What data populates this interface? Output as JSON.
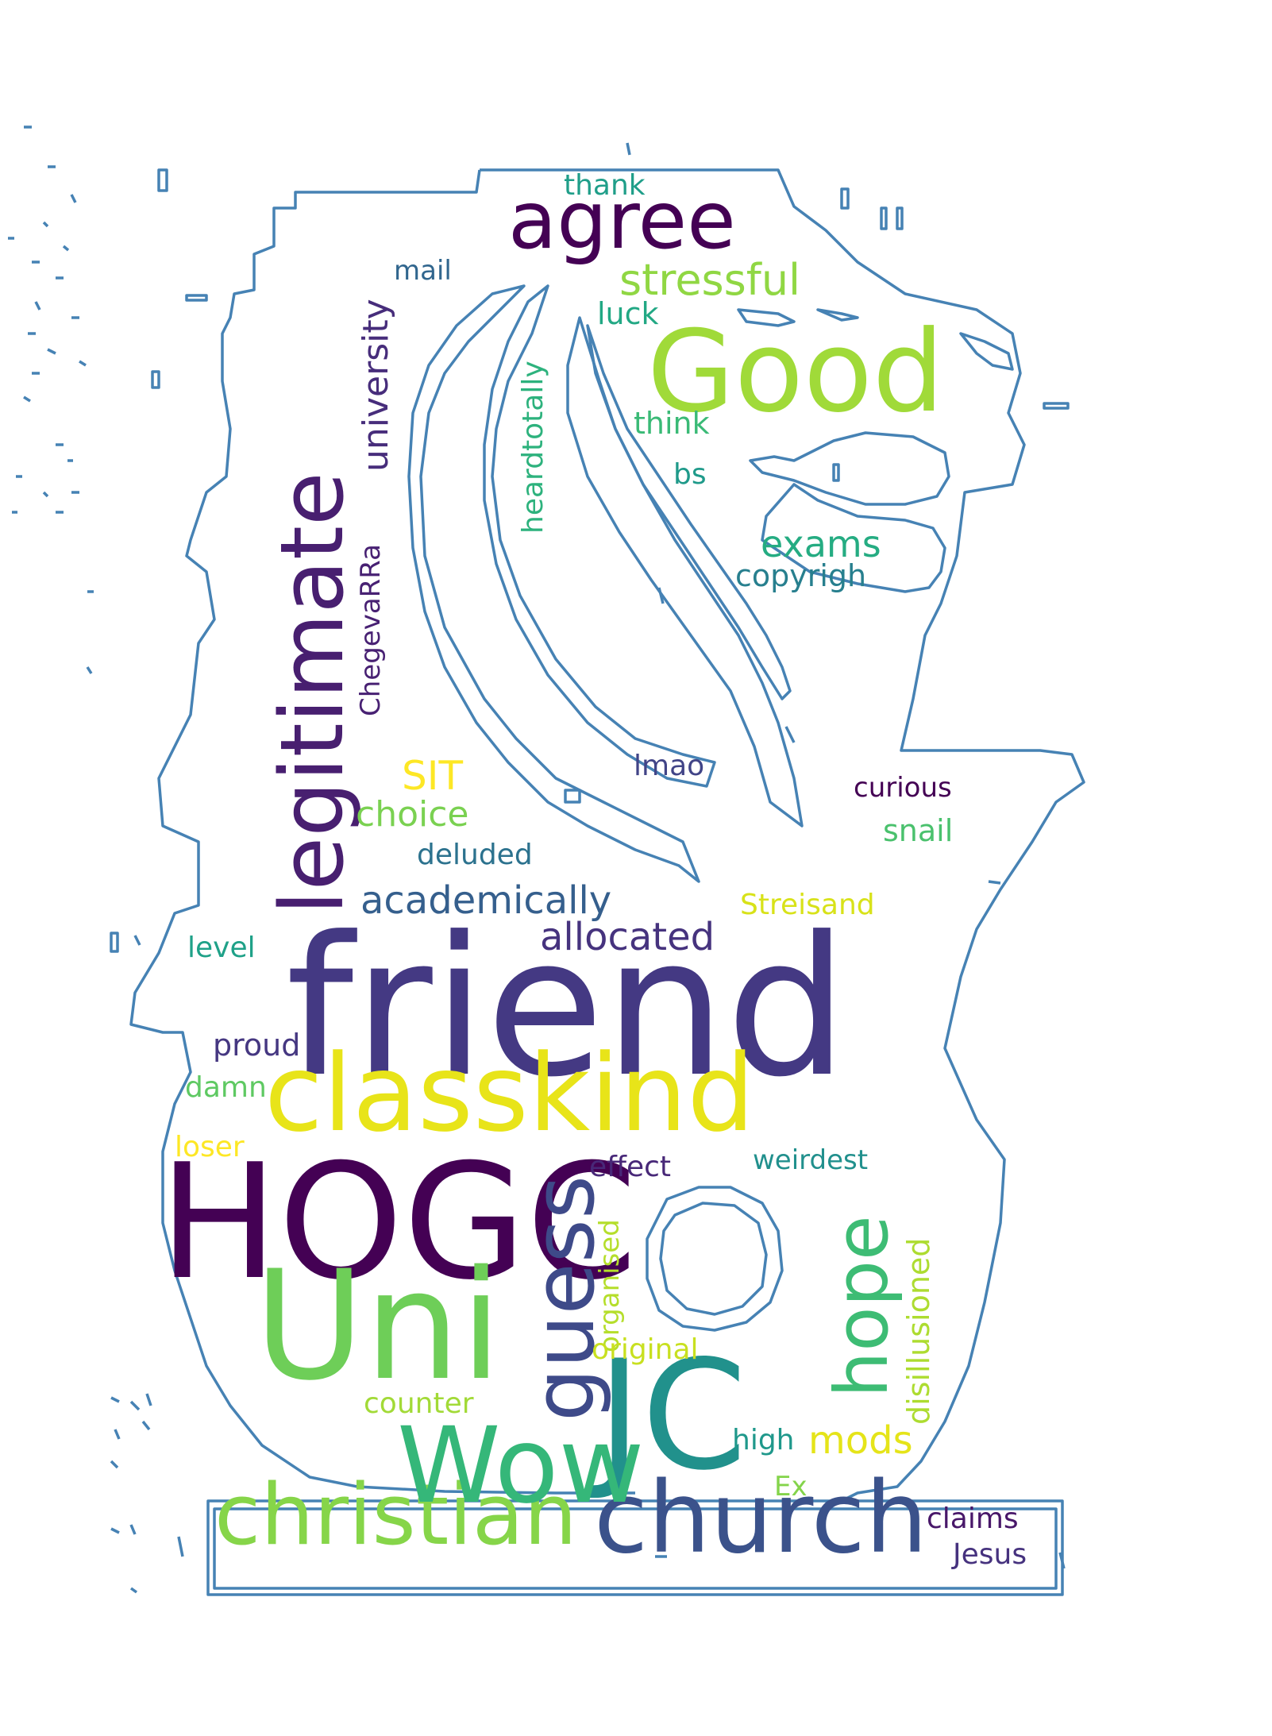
{
  "colors": {
    "background": "#ffffff",
    "outline": "#4682b4"
  },
  "shape_icon": "merlion-outline",
  "words": [
    {
      "text": "friend",
      "color": "#443983",
      "rotated": false
    },
    {
      "text": "HOGC",
      "color": "#440154",
      "rotated": false
    },
    {
      "text": "classkind",
      "color": "#e8e419",
      "rotated": false
    },
    {
      "text": "Uni",
      "color": "#6ece58",
      "rotated": false
    },
    {
      "text": "JC",
      "color": "#21918c",
      "rotated": false
    },
    {
      "text": "church",
      "color": "#3b528b",
      "rotated": false
    },
    {
      "text": "christian",
      "color": "#86d549",
      "rotated": false
    },
    {
      "text": "Wow",
      "color": "#35b779",
      "rotated": false
    },
    {
      "text": "guess",
      "color": "#3e4a89",
      "rotated": true
    },
    {
      "text": "hope",
      "color": "#3dbc74",
      "rotated": true
    },
    {
      "text": "legitimate",
      "color": "#481f70",
      "rotated": true
    },
    {
      "text": "Good",
      "color": "#a0da39",
      "rotated": false
    },
    {
      "text": "agree",
      "color": "#440154",
      "rotated": false
    },
    {
      "text": "stressful",
      "color": "#90d743",
      "rotated": false
    },
    {
      "text": "university",
      "color": "#472d7b",
      "rotated": true
    },
    {
      "text": "mail",
      "color": "#31668e",
      "rotated": false
    },
    {
      "text": "thank",
      "color": "#1f9e89",
      "rotated": false
    },
    {
      "text": "luck",
      "color": "#22a884",
      "rotated": false
    },
    {
      "text": "heardtotally",
      "color": "#2db27d",
      "rotated": true
    },
    {
      "text": "think",
      "color": "#3aba76",
      "rotated": false
    },
    {
      "text": "bs",
      "color": "#1f9a8a",
      "rotated": false
    },
    {
      "text": "exams",
      "color": "#25ac82",
      "rotated": false
    },
    {
      "text": "copyrigh",
      "color": "#277f8e",
      "rotated": false
    },
    {
      "text": "ChegevaRRa",
      "color": "#482173",
      "rotated": true
    },
    {
      "text": "SIT",
      "color": "#fde725",
      "rotated": false
    },
    {
      "text": "lmao",
      "color": "#414487",
      "rotated": false
    },
    {
      "text": "choice",
      "color": "#7ad151",
      "rotated": false
    },
    {
      "text": "curious",
      "color": "#440154",
      "rotated": false
    },
    {
      "text": "deluded",
      "color": "#2c728e",
      "rotated": false
    },
    {
      "text": "snail",
      "color": "#4ac16d",
      "rotated": false
    },
    {
      "text": "academically",
      "color": "#355f8d",
      "rotated": false
    },
    {
      "text": "Streisand",
      "color": "#d8e219",
      "rotated": false
    },
    {
      "text": "allocated",
      "color": "#46337e",
      "rotated": false
    },
    {
      "text": "level",
      "color": "#1fa188",
      "rotated": false
    },
    {
      "text": "proud",
      "color": "#453781",
      "rotated": false
    },
    {
      "text": "damn",
      "color": "#5ec962",
      "rotated": false
    },
    {
      "text": "loser",
      "color": "#fde725",
      "rotated": false
    },
    {
      "text": "effect",
      "color": "#482878",
      "rotated": false
    },
    {
      "text": "weirdest",
      "color": "#21908d",
      "rotated": false
    },
    {
      "text": "organised",
      "color": "#b5de2b",
      "rotated": true
    },
    {
      "text": "disillusioned",
      "color": "#addc30",
      "rotated": true
    },
    {
      "text": "original",
      "color": "#c8e020",
      "rotated": false
    },
    {
      "text": "counter",
      "color": "#a2da37",
      "rotated": false
    },
    {
      "text": "high",
      "color": "#1f988b",
      "rotated": false
    },
    {
      "text": "mods",
      "color": "#e5e419",
      "rotated": false
    },
    {
      "text": "Ex",
      "color": "#84d44b",
      "rotated": false
    },
    {
      "text": "claims",
      "color": "#481769",
      "rotated": false
    },
    {
      "text": "Jesus",
      "color": "#46327e",
      "rotated": false
    }
  ]
}
